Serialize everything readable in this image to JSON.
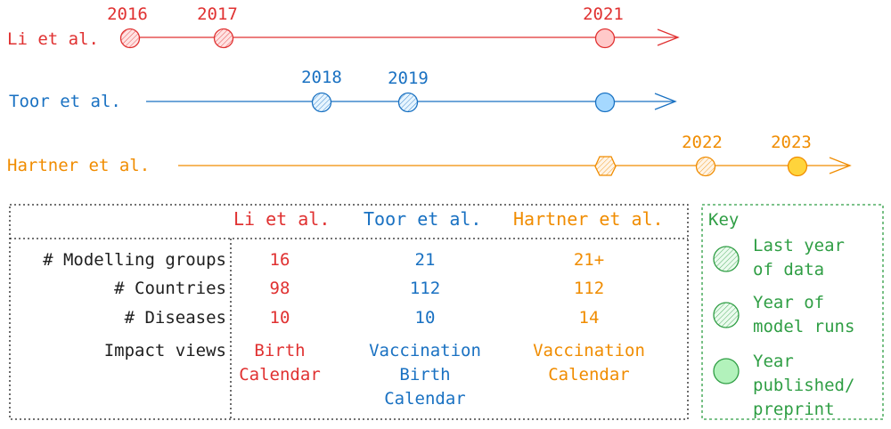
{
  "colors": {
    "li": "#e03131",
    "toor": "#1971c2",
    "hartner": "#f08c00",
    "key": "#2f9e44",
    "ink": "#1e1e1e"
  },
  "timeline": {
    "li": {
      "name": "Li et al.",
      "years": [
        "2016",
        "2017",
        "2021"
      ]
    },
    "toor": {
      "name": "Toor et al.",
      "years": [
        "2018",
        "2019"
      ]
    },
    "hartner": {
      "name": "Hartner et al.",
      "years": [
        "2022",
        "2023"
      ]
    }
  },
  "table": {
    "columns": [
      "Li et al.",
      "Toor et al.",
      "Hartner et al."
    ],
    "rows": [
      {
        "label": "# Modelling groups",
        "values": [
          "16",
          "21",
          "21+"
        ]
      },
      {
        "label": "# Countries",
        "values": [
          "98",
          "112",
          "112"
        ]
      },
      {
        "label": "# Diseases",
        "values": [
          "10",
          "10",
          "14"
        ]
      },
      {
        "label": "Impact views",
        "values": [
          [
            "Birth",
            "Calendar"
          ],
          [
            "Vaccination",
            "Birth",
            "Calendar"
          ],
          [
            "Vaccination",
            "Calendar"
          ]
        ]
      }
    ]
  },
  "key": {
    "title": "Key",
    "items": [
      {
        "lines": [
          "Last year",
          "of data"
        ]
      },
      {
        "lines": [
          "Year of",
          "model runs"
        ]
      },
      {
        "lines": [
          "Year",
          "published/",
          "preprint"
        ]
      }
    ]
  }
}
